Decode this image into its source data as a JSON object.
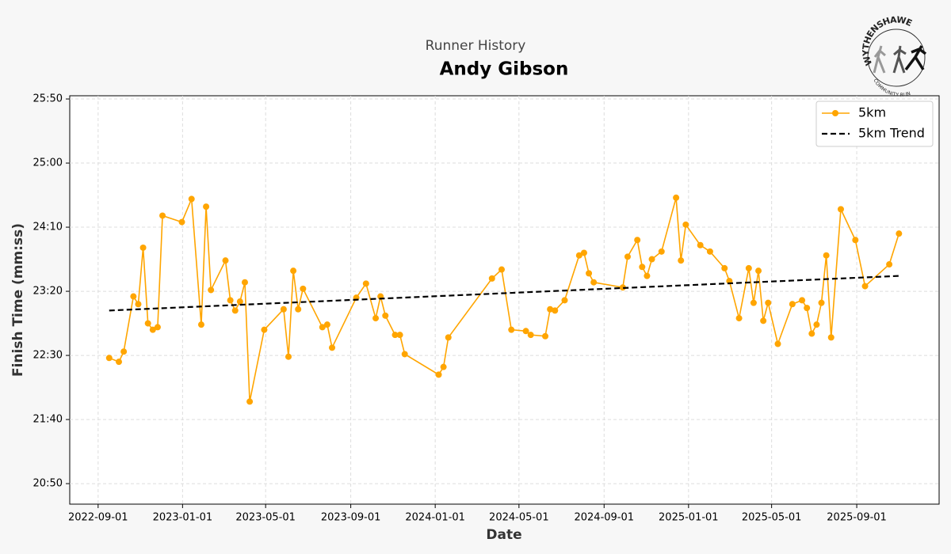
{
  "chart_data": {
    "type": "line",
    "subtitle": "Runner History",
    "title": "Andy Gibson",
    "x_label": "Date",
    "y_label": "Finish Time (mm:ss)",
    "logo": {
      "top": "WYTHENSHAWE",
      "bottom": "COMMUNITY RUN"
    },
    "xlim": [
      "2022-07-22",
      "2025-12-29"
    ],
    "xticks": [
      "2022-09-01",
      "2023-01-01",
      "2023-05-01",
      "2023-09-01",
      "2024-01-01",
      "2024-05-01",
      "2024-09-01",
      "2025-01-01",
      "2025-05-01",
      "2025-09-01"
    ],
    "ylim": [
      1234,
      1552.5
    ],
    "yticks": [
      {
        "value": 1250,
        "label": "20:50"
      },
      {
        "value": 1300,
        "label": "21:40"
      },
      {
        "value": 1350,
        "label": "22:30"
      },
      {
        "value": 1400,
        "label": "23:20"
      },
      {
        "value": 1450,
        "label": "24:10"
      },
      {
        "value": 1500,
        "label": "25:00"
      },
      {
        "value": 1550,
        "label": "25:50"
      }
    ],
    "grid": true,
    "legend": "upper right",
    "series": [
      {
        "name": "5km",
        "color": "#FFA500",
        "marker": true,
        "x": [
          "2022-09-17",
          "2022-10-01",
          "2022-10-08",
          "2022-10-22",
          "2022-10-29",
          "2022-11-05",
          "2022-11-12",
          "2022-11-19",
          "2022-11-26",
          "2022-12-03",
          "2022-12-31",
          "2023-01-14",
          "2023-01-28",
          "2023-02-04",
          "2023-02-11",
          "2023-03-04",
          "2023-03-11",
          "2023-03-18",
          "2023-03-25",
          "2023-04-01",
          "2023-04-08",
          "2023-04-29",
          "2023-05-27",
          "2023-06-03",
          "2023-06-10",
          "2023-06-17",
          "2023-06-24",
          "2023-07-22",
          "2023-07-29",
          "2023-08-05",
          "2023-09-09",
          "2023-09-23",
          "2023-10-07",
          "2023-10-14",
          "2023-10-21",
          "2023-11-04",
          "2023-11-11",
          "2023-11-18",
          "2024-01-06",
          "2024-01-13",
          "2024-01-20",
          "2024-03-23",
          "2024-04-06",
          "2024-04-20",
          "2024-05-11",
          "2024-05-18",
          "2024-06-08",
          "2024-06-15",
          "2024-06-22",
          "2024-07-06",
          "2024-07-27",
          "2024-08-03",
          "2024-08-10",
          "2024-08-17",
          "2024-09-28",
          "2024-10-05",
          "2024-10-19",
          "2024-10-26",
          "2024-11-02",
          "2024-11-09",
          "2024-11-23",
          "2024-12-14",
          "2024-12-21",
          "2024-12-28",
          "2025-01-18",
          "2025-02-01",
          "2025-02-22",
          "2025-03-01",
          "2025-03-15",
          "2025-03-29",
          "2025-04-05",
          "2025-04-12",
          "2025-04-19",
          "2025-04-26",
          "2025-05-10",
          "2025-05-31",
          "2025-06-14",
          "2025-06-21",
          "2025-06-28",
          "2025-07-05",
          "2025-07-12",
          "2025-07-19",
          "2025-07-26",
          "2025-08-09",
          "2025-08-30",
          "2025-09-13",
          "2025-10-18",
          "2025-11-01"
        ],
        "values": [
          1348,
          1345,
          1353,
          1396,
          1390,
          1434,
          1375,
          1370,
          1372,
          1459,
          1454,
          1472,
          1374,
          1466,
          1401,
          1424,
          1393,
          1385,
          1392,
          1407,
          1314,
          1370,
          1386,
          1349,
          1416,
          1386,
          1402,
          1372,
          1374,
          1356,
          1395,
          1406,
          1379,
          1396,
          1381,
          1366,
          1366,
          1351,
          1335,
          1341,
          1364,
          1410,
          1417,
          1370,
          1369,
          1366,
          1365,
          1386,
          1385,
          1393,
          1428,
          1430,
          1414,
          1407,
          1403,
          1427,
          1440,
          1419,
          1412,
          1425,
          1431,
          1473,
          1424,
          1452,
          1436,
          1431,
          1418,
          1408,
          1379,
          1418,
          1391,
          1416,
          1377,
          1391,
          1359,
          1390,
          1393,
          1387,
          1367,
          1374,
          1391,
          1428,
          1364,
          1464,
          1440,
          1404,
          1421,
          1445
        ]
      },
      {
        "name": "5km Trend",
        "color": "#000000",
        "dashed": true,
        "x": [
          "2022-09-17",
          "2025-11-01"
        ],
        "values": [
          1385,
          1412
        ]
      }
    ]
  }
}
